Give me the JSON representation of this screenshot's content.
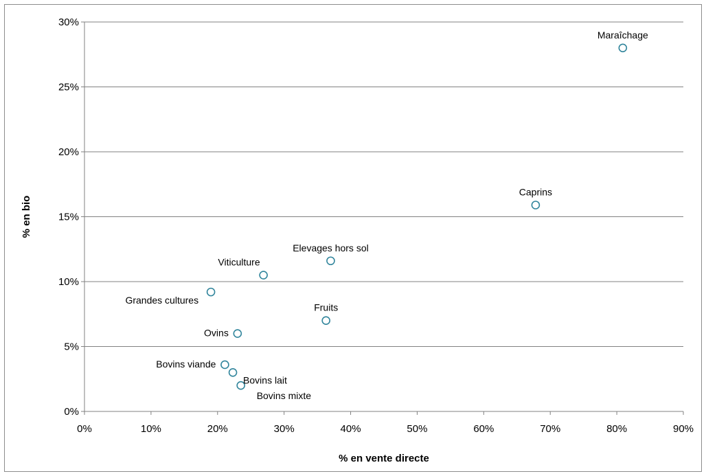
{
  "chart_data": {
    "type": "scatter",
    "title": "",
    "xlabel": "% en vente directe",
    "ylabel": "% en bio",
    "xlim": [
      0,
      90
    ],
    "ylim": [
      0,
      30
    ],
    "x_ticks": [
      0,
      10,
      20,
      30,
      40,
      50,
      60,
      70,
      80,
      90
    ],
    "y_ticks": [
      0,
      5,
      10,
      15,
      20,
      25,
      30
    ],
    "x_tick_labels": [
      "0%",
      "10%",
      "20%",
      "30%",
      "40%",
      "50%",
      "60%",
      "70%",
      "80%",
      "90%"
    ],
    "y_tick_labels": [
      "0%",
      "5%",
      "10%",
      "15%",
      "20%",
      "25%",
      "30%"
    ],
    "grid": "horizontal",
    "legend": "none",
    "marker": "open-circle",
    "colors": {
      "marker": "#31859c",
      "grid": "#808080",
      "frame": "#8c8c8c"
    },
    "points": [
      {
        "label": "Maraîchage",
        "x": 80.9,
        "y": 28.0,
        "label_pos": "above"
      },
      {
        "label": "Caprins",
        "x": 67.8,
        "y": 15.9,
        "label_pos": "above"
      },
      {
        "label": "Elevages hors sol",
        "x": 37.0,
        "y": 11.6,
        "label_pos": "above"
      },
      {
        "label": "Viticulture",
        "x": 26.9,
        "y": 10.5,
        "label_pos": "above-left"
      },
      {
        "label": "Grandes cultures",
        "x": 19.0,
        "y": 9.2,
        "label_pos": "below-left"
      },
      {
        "label": "Fruits",
        "x": 36.3,
        "y": 7.0,
        "label_pos": "above"
      },
      {
        "label": "Ovins",
        "x": 23.0,
        "y": 6.0,
        "label_pos": "left"
      },
      {
        "label": "Bovins viande",
        "x": 21.1,
        "y": 3.6,
        "label_pos": "left"
      },
      {
        "label": "Bovins lait",
        "x": 22.3,
        "y": 3.0,
        "label_pos": "right"
      },
      {
        "label": "Bovins mixte",
        "x": 23.5,
        "y": 2.0,
        "label_pos": "below-right"
      }
    ]
  }
}
